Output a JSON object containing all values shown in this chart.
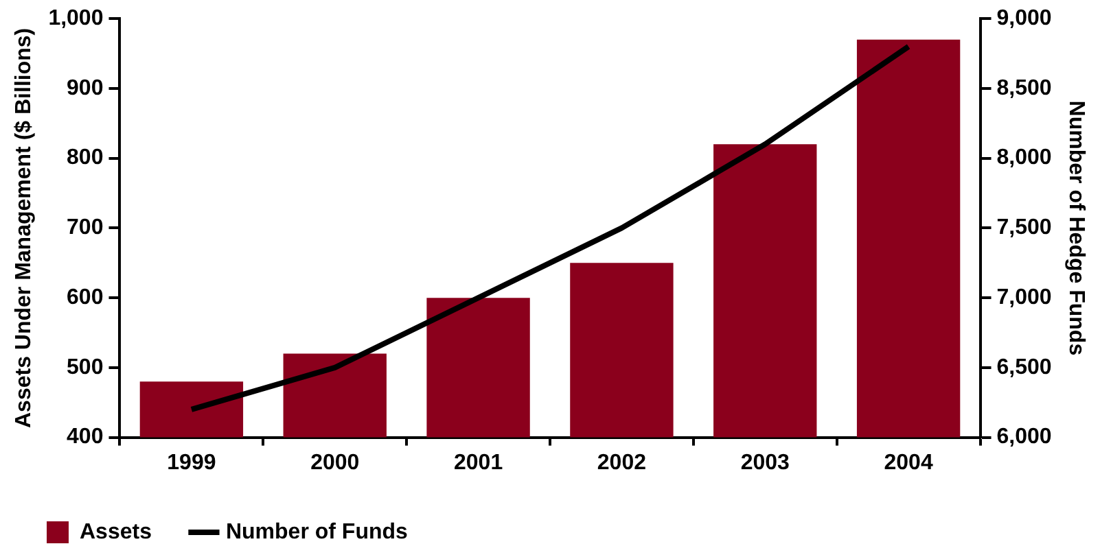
{
  "chart_data": {
    "type": "bar",
    "categories": [
      "1999",
      "2000",
      "2001",
      "2002",
      "2003",
      "2004"
    ],
    "series": [
      {
        "name": "Assets",
        "color": "#8b001c",
        "values": [
          480,
          520,
          600,
          650,
          820,
          970
        ]
      },
      {
        "name": "Number of Funds",
        "type": "line",
        "axis": "y2",
        "color": "#000000",
        "values": [
          6200,
          6500,
          7000,
          7500,
          8100,
          8800
        ]
      }
    ],
    "ylabel": "Assets Under Management ($ Billions)",
    "y2label": "Number of Hedge Funds",
    "ylim": [
      400,
      1000
    ],
    "yticks": [
      400,
      500,
      600,
      700,
      800,
      900,
      {
        "value": 1000,
        "label": "1,000"
      }
    ],
    "y2lim": [
      6000,
      9000
    ],
    "y2ticks": [
      {
        "value": 6000,
        "label": "6,000"
      },
      {
        "value": 6500,
        "label": "6,500"
      },
      {
        "value": 7000,
        "label": "7,000"
      },
      {
        "value": 7500,
        "label": "7,500"
      },
      {
        "value": 8000,
        "label": "8,000"
      },
      {
        "value": 8500,
        "label": "8,500"
      },
      {
        "value": 9000,
        "label": "9,000"
      }
    ],
    "grid": false,
    "legend": "bottom left",
    "marker": "none"
  }
}
